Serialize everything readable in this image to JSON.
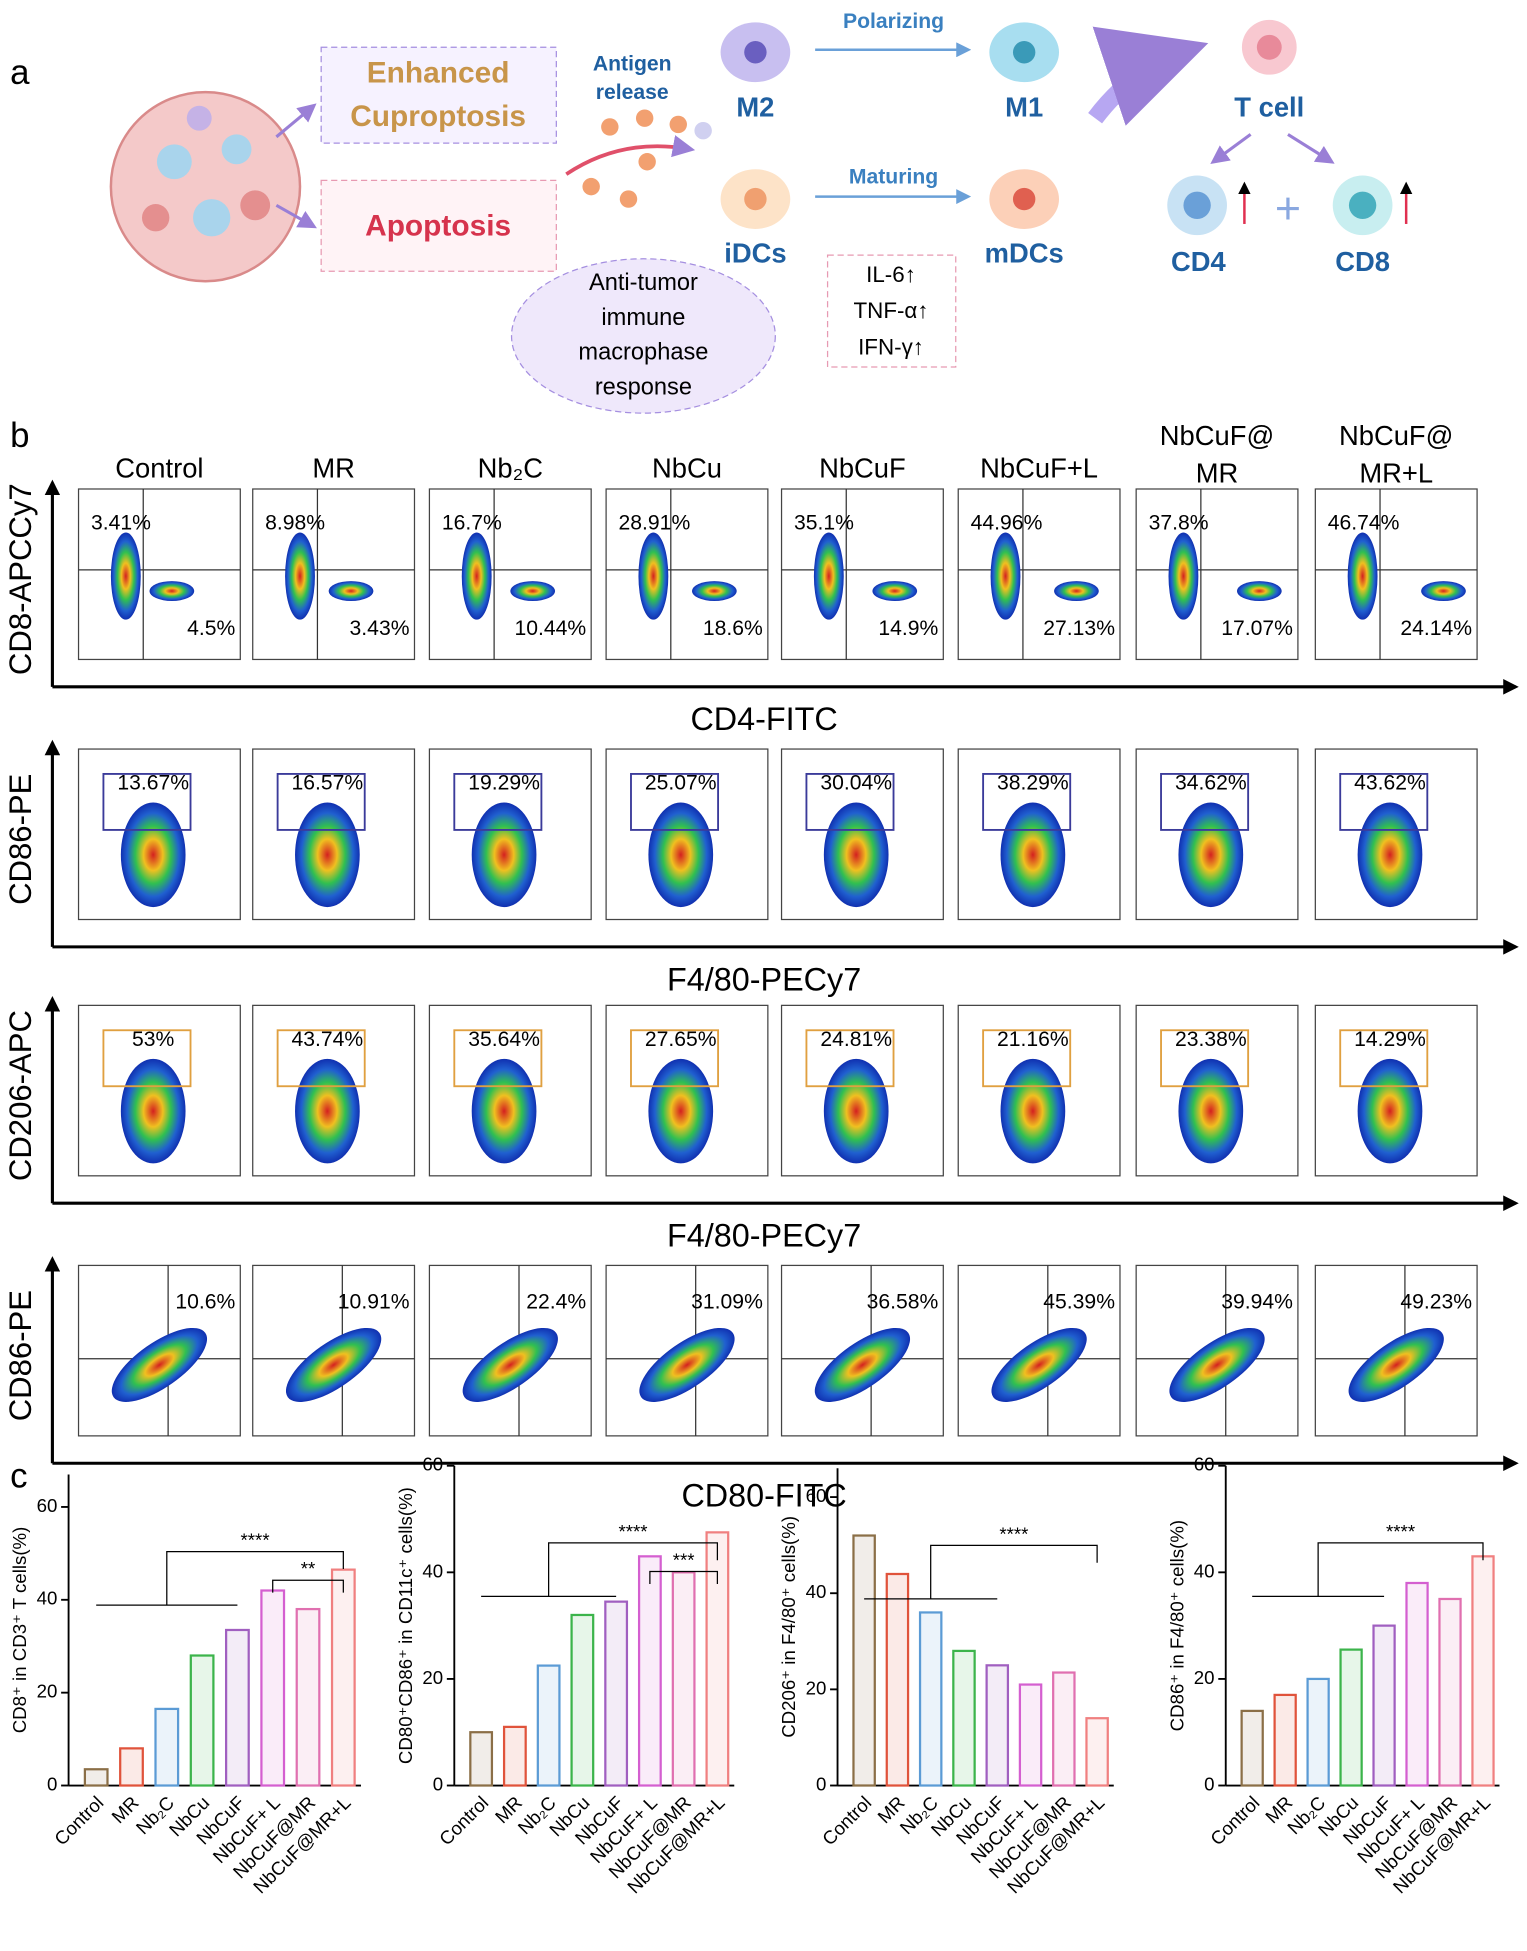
{
  "panel_a": {
    "label": "a",
    "enhanced": [
      "Enhanced",
      "Cuproptosis"
    ],
    "apoptosis": "Apoptosis",
    "antigen": [
      "Antigen",
      "release"
    ],
    "m2": "M2",
    "polarizing": "Polarizing",
    "m1": "M1",
    "t_cell": "T cell",
    "idcs": "iDCs",
    "maturing": "Maturing",
    "mdcs": "mDCs",
    "cd4": "CD4",
    "plus": "+",
    "cd8": "CD8",
    "response": [
      "Anti-tumor",
      "immune",
      "macrophase",
      "response"
    ],
    "cytokines": [
      "IL-6↑",
      "TNF-α↑",
      "IFN-γ↑"
    ]
  },
  "panel_b": {
    "label": "b",
    "groups": [
      [
        "Control"
      ],
      [
        "MR"
      ],
      [
        "Nb₂C"
      ],
      [
        "NbCu"
      ],
      [
        "NbCuF"
      ],
      [
        "NbCuF+L"
      ],
      [
        "NbCuF@",
        "MR"
      ],
      [
        "NbCuF@",
        "MR+L"
      ]
    ],
    "rows": [
      {
        "y_label": "CD8-APCCy7",
        "x_label": "CD4-FITC",
        "upper_left": [
          "3.41%",
          "8.98%",
          "16.7%",
          "28.91%",
          "35.1%",
          "44.96%",
          "37.8%",
          "46.74%"
        ],
        "lower_right": [
          "4.5%",
          "3.43%",
          "10.44%",
          "18.6%",
          "14.9%",
          "27.13%",
          "17.07%",
          "24.14%"
        ]
      },
      {
        "y_label": "CD86-PE",
        "x_label": "F4/80-PECy7",
        "gate_color": "#3b3b9a",
        "gate": [
          "13.67%",
          "16.57%",
          "19.29%",
          "25.07%",
          "30.04%",
          "38.29%",
          "34.62%",
          "43.62%"
        ]
      },
      {
        "y_label": "CD206-APC",
        "x_label": "F4/80-PECy7",
        "gate_color": "#e0a040",
        "gate": [
          "53%",
          "43.74%",
          "35.64%",
          "27.65%",
          "24.81%",
          "21.16%",
          "23.38%",
          "14.29%"
        ]
      },
      {
        "y_label": "CD86-PE",
        "x_label": "CD80-FITC",
        "upper_right": [
          "10.6%",
          "10.91%",
          "22.4%",
          "31.09%",
          "36.58%",
          "45.39%",
          "39.94%",
          "49.23%"
        ]
      }
    ]
  },
  "panel_c": {
    "label": "c",
    "charts": [
      {
        "type": "bar",
        "y_label": "CD8⁺ in CD3⁺ T cells(%)",
        "categories": [
          "Control",
          "MR",
          "Nb₂C",
          "NbCu",
          "NbCuF",
          "NbCuF+ L",
          "NbCuF@MR",
          "NbCuF@MR+L"
        ],
        "values": [
          3.5,
          8,
          16.5,
          28,
          33.5,
          42,
          38,
          46.5
        ],
        "colors": [
          "#8b6f47",
          "#e0533b",
          "#5b9bd5",
          "#3cb44b",
          "#a05fc0",
          "#d45fd0",
          "#e070b0",
          "#f08080"
        ],
        "ylim": [
          0,
          67
        ],
        "yticks": [
          0,
          20,
          40,
          60
        ],
        "annotations": [
          "****",
          "**"
        ]
      },
      {
        "type": "bar",
        "y_label": "CD80⁺CD86⁺ in CD11c⁺ cells(%)",
        "categories": [
          "Control",
          "MR",
          "Nb₂C",
          "NbCu",
          "NbCuF",
          "NbCuF+ L",
          "NbCuF@MR",
          "NbCuF@MR+L"
        ],
        "values": [
          10,
          11,
          22.5,
          32,
          34.5,
          43,
          40,
          47.5
        ],
        "colors": [
          "#8b6f47",
          "#e0533b",
          "#5b9bd5",
          "#3cb44b",
          "#a05fc0",
          "#d45fd0",
          "#e070b0",
          "#f08080"
        ],
        "ylim": [
          0,
          60
        ],
        "yticks": [
          0,
          20,
          40,
          60
        ],
        "annotations": [
          "****",
          "***"
        ]
      },
      {
        "type": "bar",
        "y_label": "CD206⁺ in F4/80⁺ cells(%)",
        "categories": [
          "Control",
          "MR",
          "Nb₂C",
          "NbCu",
          "NbCuF",
          "NbCuF+ L",
          "NbCuF@MR",
          "NbCuF@MR+L"
        ],
        "values": [
          52,
          44,
          36,
          28,
          25,
          21,
          23.5,
          14
        ],
        "colors": [
          "#8b6f47",
          "#e0533b",
          "#5b9bd5",
          "#3cb44b",
          "#a05fc0",
          "#d45fd0",
          "#e070b0",
          "#f08080"
        ],
        "ylim": [
          0,
          66
        ],
        "yticks": [
          0,
          20,
          40,
          60
        ],
        "annotations": [
          "****"
        ]
      },
      {
        "type": "bar",
        "y_label": "CD86⁺ in F4/80⁺ cells(%)",
        "categories": [
          "Control",
          "MR",
          "Nb₂C",
          "NbCu",
          "NbCuF",
          "NbCuF+ L",
          "NbCuF@MR",
          "NbCuF@MR+L"
        ],
        "values": [
          14,
          17,
          20,
          25.5,
          30,
          38,
          35,
          43
        ],
        "colors": [
          "#8b6f47",
          "#e0533b",
          "#5b9bd5",
          "#3cb44b",
          "#a05fc0",
          "#d45fd0",
          "#e070b0",
          "#f08080"
        ],
        "ylim": [
          0,
          60
        ],
        "yticks": [
          0,
          20,
          40,
          60
        ],
        "annotations": [
          "****"
        ]
      }
    ]
  }
}
